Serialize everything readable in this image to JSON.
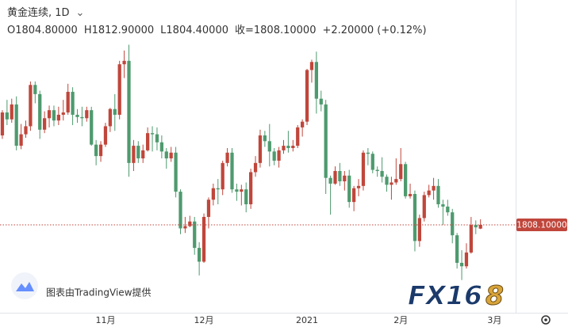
{
  "chart_data": {
    "type": "candlestick",
    "title": "黄金连续, 1D",
    "ohlc_labels": [
      "O1804.80000",
      "H1812.90000",
      "L1804.40000",
      "收=1808.10000",
      "+2.20000 (+0.12%)"
    ],
    "up_color": "#c0463b",
    "down_color": "#4e9a6e",
    "ylim": [
      1731.5,
      2004
    ],
    "last_price": {
      "value": 1808.1,
      "label": "1808.10000"
    },
    "watermark": "图表由TradingView提供",
    "logo_parts": [
      "FX16",
      "8"
    ],
    "categories": [
      null,
      null,
      null,
      null,
      null,
      null,
      null,
      null,
      null,
      null,
      null,
      null,
      null,
      null,
      null,
      null,
      null,
      null,
      null,
      null,
      null,
      null,
      "11月",
      null,
      null,
      null,
      null,
      null,
      null,
      null,
      null,
      null,
      null,
      null,
      null,
      null,
      null,
      null,
      null,
      null,
      null,
      null,
      null,
      "12月",
      null,
      null,
      null,
      null,
      null,
      null,
      null,
      null,
      null,
      null,
      null,
      null,
      null,
      null,
      null,
      null,
      null,
      null,
      null,
      null,
      null,
      "2021",
      null,
      null,
      null,
      null,
      null,
      null,
      null,
      null,
      null,
      null,
      null,
      null,
      null,
      null,
      null,
      null,
      null,
      null,
      null,
      "2月",
      null,
      null,
      null,
      null,
      null,
      null,
      null,
      null,
      null,
      null,
      null,
      null,
      null,
      null,
      null,
      null,
      null,
      null,
      null,
      "3月",
      null,
      null,
      null,
      null
    ],
    "open": [
      1886,
      1906,
      1900,
      1913,
      1877,
      1887,
      1894,
      1930,
      1922,
      1891,
      1901,
      1908,
      1899,
      1904,
      1906,
      1924,
      1904,
      1902,
      1901,
      1908,
      1878,
      1868,
      1878,
      1894,
      1909,
      1904,
      1948,
      1951,
      1862,
      1877,
      1866,
      1873,
      1888,
      1887,
      1880,
      1872,
      1866,
      1871,
      1837,
      1805,
      1807,
      1811,
      1788,
      1776,
      1815,
      1830,
      1840,
      1839,
      1862,
      1871,
      1839,
      1837,
      1839,
      1826,
      1854,
      1862,
      1886,
      1881,
      1872,
      1864,
      1873,
      1877,
      1875,
      1877,
      1893,
      1898,
      1943,
      1950,
      1918,
      1913,
      1849,
      1844,
      1855,
      1846,
      1851,
      1828,
      1840,
      1842,
      1871,
      1870,
      1856,
      1855,
      1850,
      1843,
      1845,
      1848,
      1861,
      1833,
      1835,
      1794,
      1814,
      1834,
      1838,
      1842,
      1826,
      1824,
      1819,
      1799,
      1775,
      1772,
      1784,
      1808,
      1804.8,
      null,
      null,
      null,
      null,
      null,
      null,
      null
    ],
    "high": [
      1908,
      1917,
      1918,
      1920,
      1896,
      1899,
      1933,
      1933,
      1925,
      1907,
      1912,
      1912,
      1911,
      1917,
      1931,
      1928,
      1909,
      1911,
      1911,
      1911,
      1882,
      1881,
      1897,
      1910,
      1922,
      1951,
      1960,
      1965,
      1882,
      1881,
      1878,
      1893,
      1894,
      1893,
      1886,
      1875,
      1876,
      1876,
      1839,
      1815,
      1816,
      1815,
      1793,
      1818,
      1832,
      1844,
      1848,
      1864,
      1875,
      1875,
      1844,
      1843,
      1845,
      1857,
      1868,
      1891,
      1890,
      1896,
      1875,
      1876,
      1882,
      1890,
      1882,
      1895,
      1900,
      1944,
      1952,
      1959,
      1925,
      1917,
      1851,
      1859,
      1862,
      1855,
      1856,
      1842,
      1848,
      1873,
      1875,
      1872,
      1859,
      1867,
      1852,
      1850,
      1866,
      1875,
      1863,
      1844,
      1838,
      1817,
      1837,
      1843,
      1849,
      1848,
      1830,
      1830,
      1822,
      1801,
      1786,
      1792,
      1815,
      1812,
      1812.9,
      null,
      null,
      null,
      null,
      null,
      null,
      null
    ],
    "low": [
      1883,
      1895,
      1897,
      1873,
      1874,
      1884,
      1890,
      1914,
      1883,
      1888,
      1893,
      1894,
      1895,
      1899,
      1904,
      1895,
      1897,
      1894,
      1898,
      1877,
      1860,
      1863,
      1876,
      1889,
      1890,
      1900,
      1936,
      1850,
      1855,
      1862,
      1862,
      1872,
      1872,
      1873,
      1866,
      1857,
      1863,
      1832,
      1800,
      1801,
      1806,
      1782,
      1764,
      1775,
      1805,
      1825,
      1826,
      1834,
      1859,
      1836,
      1829,
      1825,
      1819,
      1822,
      1850,
      1858,
      1876,
      1859,
      1860,
      1858,
      1870,
      1871,
      1872,
      1875,
      1885,
      1895,
      1932,
      1905,
      1907,
      1835,
      1817,
      1843,
      1842,
      1838,
      1823,
      1820,
      1833,
      1838,
      1860,
      1853,
      1850,
      1845,
      1837,
      1830,
      1843,
      1846,
      1831,
      1831,
      1785,
      1789,
      1811,
      1832,
      1830,
      1823,
      1808,
      1816,
      1792,
      1770,
      1760,
      1770,
      1783,
      1800,
      1804.4,
      null,
      null,
      null,
      null,
      null,
      null,
      null
    ],
    "close": [
      1906,
      1900,
      1913,
      1877,
      1887,
      1894,
      1930,
      1922,
      1891,
      1901,
      1908,
      1899,
      1904,
      1906,
      1924,
      1904,
      1902,
      1901,
      1908,
      1878,
      1868,
      1878,
      1894,
      1909,
      1904,
      1948,
      1951,
      1862,
      1877,
      1866,
      1873,
      1888,
      1887,
      1880,
      1872,
      1866,
      1871,
      1837,
      1805,
      1807,
      1811,
      1788,
      1776,
      1815,
      1830,
      1840,
      1839,
      1862,
      1871,
      1839,
      1837,
      1839,
      1826,
      1854,
      1862,
      1886,
      1881,
      1872,
      1864,
      1873,
      1877,
      1875,
      1877,
      1893,
      1898,
      1943,
      1950,
      1918,
      1913,
      1849,
      1844,
      1855,
      1846,
      1851,
      1828,
      1840,
      1842,
      1871,
      1870,
      1856,
      1855,
      1850,
      1843,
      1845,
      1848,
      1861,
      1833,
      1835,
      1794,
      1814,
      1834,
      1838,
      1842,
      1826,
      1824,
      1819,
      1799,
      1775,
      1772,
      1784,
      1808,
      1805.9,
      1808.1,
      null,
      null,
      null,
      null,
      null,
      null,
      null
    ]
  }
}
